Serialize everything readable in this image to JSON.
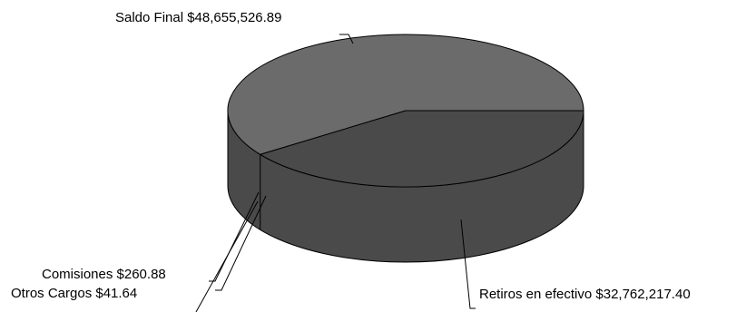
{
  "chart_data": {
    "type": "pie",
    "style": "3d",
    "title": "",
    "slices": [
      {
        "label": "Saldo Final",
        "value": 48655526.89,
        "display": "Saldo Final $48,655,526.89",
        "color": "#6b6b6b"
      },
      {
        "label": "Retiros en efectivo",
        "value": 32762217.4,
        "display": "Retiros en efectivo $32,762,217.40",
        "color": "#4a4a4a"
      },
      {
        "label": "Comisiones",
        "value": 260.88,
        "display": "Comisiones $260.88",
        "color": "#4a4a4a"
      },
      {
        "label": "Otros Cargos",
        "value": 41.64,
        "display": "Otros Cargos $41.64",
        "color": "#4a4a4a"
      }
    ],
    "legend": "none",
    "data_labels": "outside-with-leader-lines"
  }
}
